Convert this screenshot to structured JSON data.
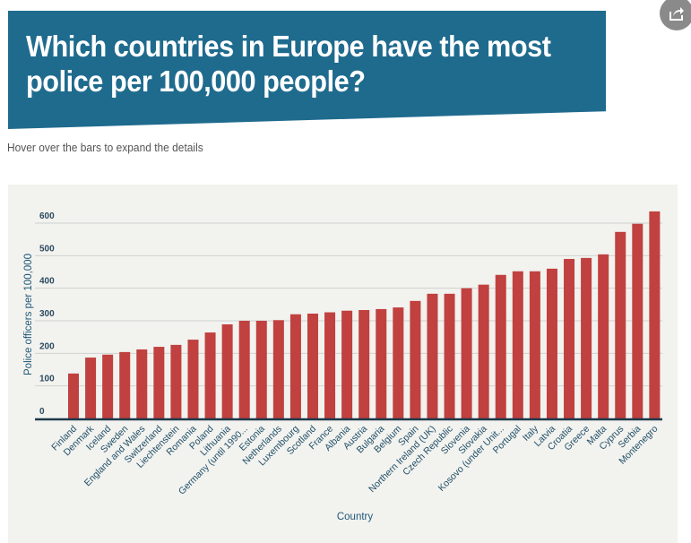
{
  "header": {
    "title": "Which countries in Europe have the most police per 100,000 people?",
    "subtitle": "Hover over the bars to expand the details",
    "share_icon": "share-icon"
  },
  "colors": {
    "banner": "#1f6b8e",
    "bar": "#c0413f",
    "panel": "#f2f2ef",
    "axis": "#1c3a4a"
  },
  "chart_data": {
    "type": "bar",
    "title": "Which countries in Europe have the most police per 100,000 people?",
    "xlabel": "Country",
    "ylabel": "Police officers per 100,000",
    "ylim": [
      0,
      650
    ],
    "yticks": [
      0,
      100,
      200,
      300,
      400,
      500,
      600
    ],
    "grid": true,
    "legend": "none",
    "categories": [
      "Finland",
      "Denmark",
      "Iceland",
      "Sweden",
      "England and Wales",
      "Switzerland",
      "Liechtenstein",
      "Romania",
      "Poland",
      "Lithuania",
      "Germany (until 1990...",
      "Estonia",
      "Netherlands",
      "Luxembourg",
      "Scotland",
      "France",
      "Albania",
      "Austria",
      "Bulgaria",
      "Belgium",
      "Spain",
      "Northern Ireland (UK)",
      "Czech Republic",
      "Slovenia",
      "Slovakia",
      "Kosovo (under Unit...",
      "Portugal",
      "Italy",
      "Latvia",
      "Croatia",
      "Greece",
      "Malta",
      "Cyprus",
      "Serbia",
      "Montenegro"
    ],
    "values": [
      138,
      187,
      196,
      204,
      212,
      220,
      226,
      242,
      264,
      289,
      300,
      300,
      302,
      320,
      322,
      326,
      331,
      333,
      336,
      341,
      361,
      383,
      383,
      400,
      411,
      441,
      452,
      452,
      460,
      490,
      493,
      504,
      573,
      598,
      636
    ]
  }
}
